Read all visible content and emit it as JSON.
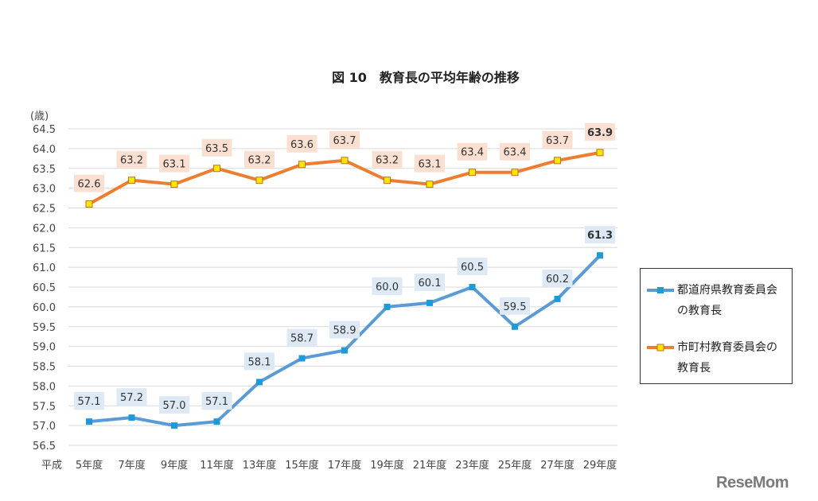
{
  "chart_data": {
    "type": "line",
    "title": "図 10　教育長の平均年齢の推移",
    "ylabel": "(歳)",
    "xlabel": "",
    "ylim": [
      56.5,
      64.5
    ],
    "ytick_step": 0.5,
    "grid": true,
    "legend_position": "right",
    "era_label": "平成",
    "categories": [
      "5年度",
      "7年度",
      "9年度",
      "11年度",
      "13年度",
      "15年度",
      "17年度",
      "19年度",
      "21年度",
      "23年度",
      "25年度",
      "27年度",
      "29年度"
    ],
    "series": [
      {
        "name": "都道府県教育委員会の教育長",
        "color": "#5b9bd5",
        "marker_color": "#1e9ad8",
        "label_bg": "#dde9f5",
        "values": [
          57.1,
          57.2,
          57.0,
          57.1,
          58.1,
          58.7,
          58.9,
          60.0,
          60.1,
          60.5,
          59.5,
          60.2,
          61.3
        ],
        "labels": [
          "57.1",
          "57.2",
          "57.0",
          "57.1",
          "58.1",
          "58.7",
          "58.9",
          "60.0",
          "60.1",
          "60.5",
          "59.5",
          "60.2",
          "61.3"
        ]
      },
      {
        "name": "市町村教育委員会の教育長",
        "color": "#ed7d31",
        "marker_color": "#ffe600",
        "label_bg": "#fbe0d2",
        "values": [
          62.6,
          63.2,
          63.1,
          63.5,
          63.2,
          63.6,
          63.7,
          63.2,
          63.1,
          63.4,
          63.4,
          63.7,
          63.9
        ],
        "labels": [
          "62.6",
          "63.2",
          "63.1",
          "63.5",
          "63.2",
          "63.6",
          "63.7",
          "63.2",
          "63.1",
          "63.4",
          "63.4",
          "63.7",
          "63.9"
        ]
      }
    ]
  },
  "legend": {
    "items": [
      {
        "line1": "都道府県教育委員会",
        "line2": "の教育長"
      },
      {
        "line1": "市町村教育委員会の",
        "line2": "教育長"
      }
    ]
  },
  "logo": {
    "text": "ReseMom"
  }
}
